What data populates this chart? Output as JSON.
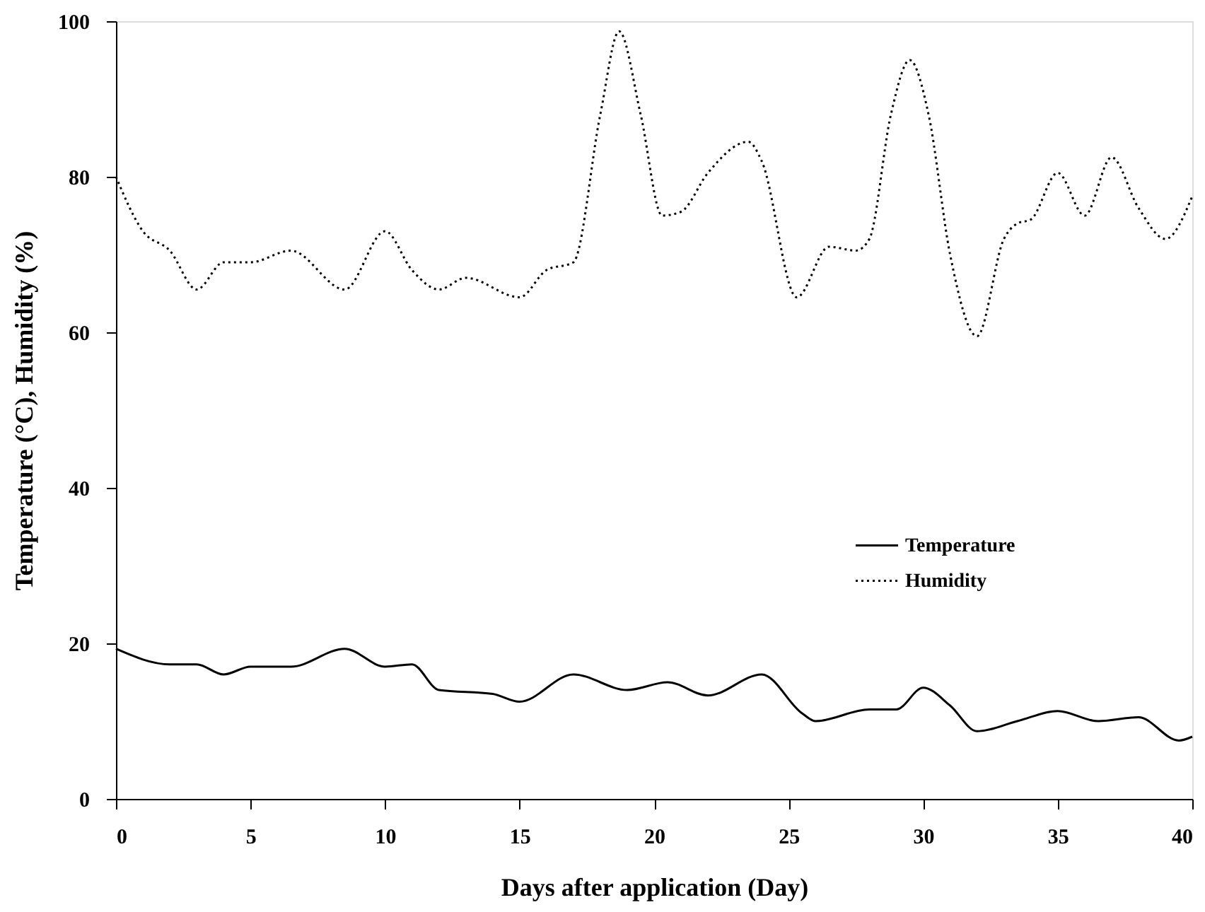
{
  "chart_data": {
    "type": "line",
    "xlabel": "Days after application (Day)",
    "ylabel": "Temperature (°C), Humidity (%)",
    "xlim": [
      0,
      40
    ],
    "xticks": [
      0,
      5,
      10,
      15,
      20,
      25,
      30,
      35,
      40
    ],
    "ylim": [
      0,
      100
    ],
    "yticks": [
      0,
      20,
      40,
      60,
      80,
      100
    ],
    "grid": false,
    "legend": "right",
    "marker": "none",
    "series": [
      {
        "name": "Temperature",
        "color": "#000000",
        "line_style": "solid",
        "x": [
          0,
          2,
          3,
          4,
          5,
          6.5,
          8.5,
          10,
          11,
          12,
          14,
          15,
          17,
          19,
          20.5,
          22,
          24,
          25.5,
          26,
          28,
          29,
          30,
          31,
          32,
          33.5,
          35,
          36.5,
          38,
          39.5,
          40
        ],
        "values": [
          19.3,
          17.3,
          17.3,
          16,
          17,
          17,
          19.3,
          17,
          17.3,
          14,
          13.5,
          12.5,
          16,
          14,
          15,
          13.3,
          16,
          11,
          10,
          11.5,
          11.5,
          14.3,
          12,
          8.7,
          10,
          11.3,
          10,
          10.5,
          7.5,
          8
        ]
      },
      {
        "name": "Humidity",
        "color": "#000000",
        "line_style": "dotted",
        "x": [
          0,
          1,
          2,
          3,
          4,
          5,
          6.5,
          8.5,
          10,
          11,
          12,
          13,
          15,
          16,
          17,
          18,
          18.7,
          19.5,
          20.3,
          21,
          22,
          23.5,
          24,
          25.3,
          26.5,
          27.5,
          28,
          28.8,
          29.5,
          30.2,
          31,
          32,
          33,
          33.5,
          34,
          35,
          36,
          37,
          38,
          39,
          40
        ],
        "values": [
          80,
          73,
          70.5,
          65.5,
          69,
          69,
          70.5,
          65.5,
          73,
          68,
          65.5,
          67,
          64.5,
          68,
          69,
          88,
          98.7,
          88,
          75,
          75.5,
          80.5,
          84.5,
          82,
          64.5,
          71,
          70.5,
          72,
          88,
          95,
          88,
          70,
          59.5,
          72,
          74,
          74.5,
          80.5,
          75,
          82.5,
          76,
          72,
          77.5
        ]
      }
    ]
  }
}
